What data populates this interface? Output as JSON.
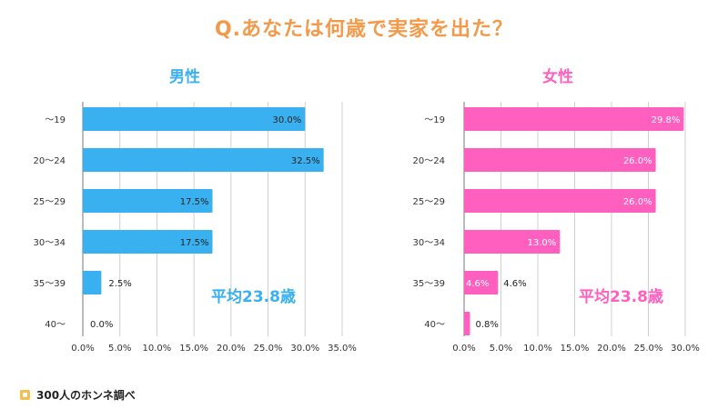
{
  "title": "Q.あなたは何歳で実家を出た？",
  "footer": {
    "brand": "300人のホンネ調べ"
  },
  "colors": {
    "title": "#f39a4a",
    "male": "#39b0f0",
    "female": "#ff5fbe",
    "footer_icon": "#f3c14a"
  },
  "chart_data": [
    {
      "type": "bar",
      "orientation": "horizontal",
      "title": "男性",
      "categories": [
        "〜19",
        "20〜24",
        "25〜29",
        "30〜34",
        "35〜39",
        "40〜"
      ],
      "values": [
        30.0,
        32.5,
        17.5,
        17.5,
        2.5,
        0.0
      ],
      "value_labels": [
        "30.0%",
        "32.5%",
        "17.5%",
        "17.5%",
        "2.5%",
        "0.0%"
      ],
      "x_ticks": [
        "0.0%",
        "5.0%",
        "10.0%",
        "15.0%",
        "20.0%",
        "25.0%",
        "30.0%",
        "35.0%"
      ],
      "xlim": [
        0,
        35
      ],
      "grid": true,
      "annotation": "平均23.8歳",
      "color": "#39b0f0"
    },
    {
      "type": "bar",
      "orientation": "horizontal",
      "title": "女性",
      "categories": [
        "〜19",
        "20〜24",
        "25〜29",
        "30〜34",
        "35〜39",
        "40〜"
      ],
      "values": [
        29.8,
        26.0,
        26.0,
        13.0,
        4.6,
        0.8
      ],
      "value_labels": [
        "29.8%",
        "26.0%",
        "26.0%",
        "13.0%",
        "4.6%",
        "0.8%"
      ],
      "outside_labels": [
        "",
        "",
        "",
        "",
        "4.6%",
        "0.8%"
      ],
      "x_ticks": [
        "0.0%",
        "5.0%",
        "10.0%",
        "15.0%",
        "20.0%",
        "25.0%",
        "30.0%"
      ],
      "xlim": [
        0,
        30
      ],
      "grid": true,
      "annotation": "平均23.8歳",
      "color": "#ff5fbe"
    }
  ]
}
